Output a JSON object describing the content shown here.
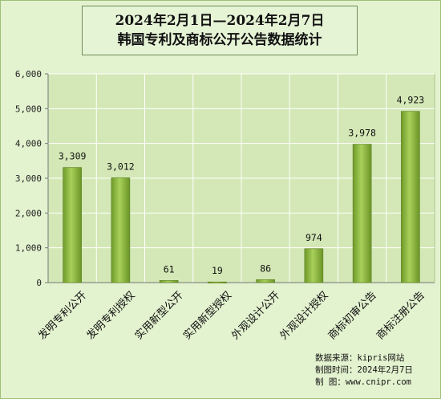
{
  "chart_data": {
    "type": "bar",
    "title_line1": "2024年2月1日—2024年2月7日",
    "title_line2": "韩国专利及商标公开公告数据统计",
    "categories": [
      "发明专利公开",
      "发明专利授权",
      "实用新型公开",
      "实用新型授权",
      "外观设计公开",
      "外观设计授权",
      "商标初审公告",
      "商标注册公告"
    ],
    "values": [
      3309,
      3012,
      61,
      19,
      86,
      974,
      3978,
      4923
    ],
    "data_labels": [
      "3,309",
      "3,012",
      "61",
      "19",
      "86",
      "974",
      "3,978",
      "4,923"
    ],
    "yticks": [
      "0",
      "1,000",
      "2,000",
      "3,000",
      "4,000",
      "5,000",
      "6,000"
    ],
    "ylim": [
      0,
      6000
    ],
    "grid": true,
    "bar_color": "#8ab83e"
  },
  "source": {
    "line1": "数据来源：kipris网站",
    "line2": "制图时间：2024年2月7日",
    "line3": "制    图：www.cnipr.com"
  }
}
